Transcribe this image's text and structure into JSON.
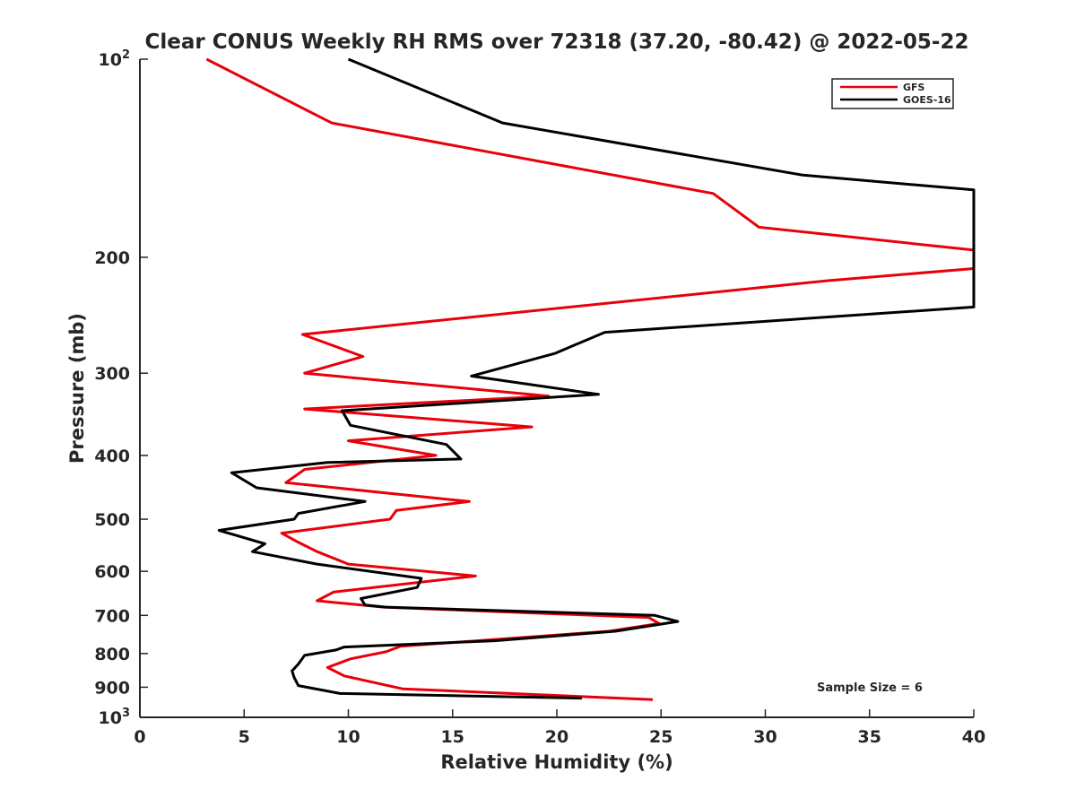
{
  "chart_data": {
    "type": "line",
    "title": "Clear CONUS Weekly RH RMS over 72318 (37.20, -80.42) @ 2022-05-22",
    "xlabel": "Relative Humidity (%)",
    "ylabel": "Pressure (mb)",
    "xlim": [
      0,
      40
    ],
    "ylim": [
      100,
      1000
    ],
    "y_scale": "log",
    "y_reversed": true,
    "grid": false,
    "legend_position": "top-right",
    "annotation": "Sample Size = 6",
    "x_ticks": [
      "0",
      "5",
      "10",
      "15",
      "20",
      "25",
      "30",
      "35",
      "40"
    ],
    "y_ticks": [
      {
        "value": 100,
        "base": "10",
        "exp": "2"
      },
      {
        "value": 200,
        "label": "200"
      },
      {
        "value": 300,
        "label": "300"
      },
      {
        "value": 400,
        "label": "400"
      },
      {
        "value": 500,
        "label": "500"
      },
      {
        "value": 600,
        "label": "600"
      },
      {
        "value": 700,
        "label": "700"
      },
      {
        "value": 800,
        "label": "800"
      },
      {
        "value": 900,
        "label": "900"
      },
      {
        "value": 1000,
        "base": "10",
        "exp": "3"
      }
    ],
    "series": [
      {
        "name": "GFS",
        "color": "#e8000b",
        "points": [
          [
            3.2,
            100
          ],
          [
            9.2,
            125
          ],
          [
            27.5,
            160
          ],
          [
            29.7,
            180
          ],
          [
            40.0,
            195
          ],
          [
            40.0,
            208
          ],
          [
            33.0,
            217
          ],
          [
            7.8,
            262
          ],
          [
            10.7,
            283
          ],
          [
            7.9,
            300
          ],
          [
            19.6,
            325
          ],
          [
            7.9,
            340
          ],
          [
            18.8,
            362
          ],
          [
            10.0,
            380
          ],
          [
            14.2,
            400
          ],
          [
            7.9,
            420
          ],
          [
            7.0,
            440
          ],
          [
            15.8,
            470
          ],
          [
            12.3,
            485
          ],
          [
            12.0,
            500
          ],
          [
            6.8,
            525
          ],
          [
            7.5,
            540
          ],
          [
            8.5,
            560
          ],
          [
            10.0,
            585
          ],
          [
            16.1,
            610
          ],
          [
            9.3,
            645
          ],
          [
            8.5,
            665
          ],
          [
            11.7,
            680
          ],
          [
            24.4,
            705
          ],
          [
            24.9,
            720
          ],
          [
            22.5,
            740
          ],
          [
            12.5,
            780
          ],
          [
            11.8,
            795
          ],
          [
            10.1,
            815
          ],
          [
            9.0,
            840
          ],
          [
            9.8,
            865
          ],
          [
            12.6,
            905
          ],
          [
            24.6,
            940
          ]
        ]
      },
      {
        "name": "GOES-16",
        "color": "#000000",
        "points": [
          [
            10.0,
            100
          ],
          [
            17.4,
            125
          ],
          [
            31.8,
            150
          ],
          [
            40.0,
            158
          ],
          [
            40.0,
            238
          ],
          [
            22.3,
            260
          ],
          [
            19.9,
            280
          ],
          [
            15.9,
            303
          ],
          [
            22.0,
            323
          ],
          [
            9.7,
            342
          ],
          [
            10.1,
            360
          ],
          [
            14.7,
            385
          ],
          [
            15.4,
            405
          ],
          [
            9.0,
            410
          ],
          [
            4.4,
            425
          ],
          [
            5.6,
            448
          ],
          [
            10.8,
            470
          ],
          [
            7.6,
            490
          ],
          [
            7.4,
            500
          ],
          [
            3.8,
            520
          ],
          [
            6.0,
            545
          ],
          [
            5.4,
            560
          ],
          [
            8.5,
            585
          ],
          [
            13.5,
            615
          ],
          [
            13.3,
            635
          ],
          [
            10.6,
            660
          ],
          [
            10.8,
            675
          ],
          [
            11.8,
            680
          ],
          [
            24.7,
            700
          ],
          [
            25.8,
            715
          ],
          [
            22.8,
            740
          ],
          [
            17.0,
            765
          ],
          [
            9.8,
            782
          ],
          [
            9.4,
            790
          ],
          [
            7.9,
            805
          ],
          [
            7.6,
            830
          ],
          [
            7.3,
            850
          ],
          [
            7.4,
            870
          ],
          [
            7.6,
            895
          ],
          [
            9.6,
            920
          ],
          [
            21.2,
            935
          ]
        ]
      }
    ]
  }
}
